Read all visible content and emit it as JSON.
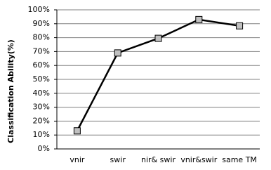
{
  "chart_data": {
    "type": "line",
    "y_label": "Classification Ability(%)",
    "categories": [
      "vnir",
      "swir",
      "nir& swir",
      "vnir&swir",
      "same TM"
    ],
    "values": [
      13,
      69,
      79.5,
      93,
      88.5
    ],
    "color": "#000000",
    "marker_color": "#c0c0c0",
    "ylim": [
      0,
      100
    ],
    "yticks": [
      {
        "value": 0,
        "label": "0%"
      },
      {
        "value": 10,
        "label": "10%"
      },
      {
        "value": 20,
        "label": "20%"
      },
      {
        "value": 30,
        "label": "30%"
      },
      {
        "value": 40,
        "label": "40%"
      },
      {
        "value": 50,
        "label": "50%"
      },
      {
        "value": 60,
        "label": "60%"
      },
      {
        "value": 70,
        "label": "70%"
      },
      {
        "value": 80,
        "label": "80%"
      },
      {
        "value": 90,
        "label": "90%"
      },
      {
        "value": 100,
        "label": "100%"
      }
    ],
    "grid": true
  }
}
